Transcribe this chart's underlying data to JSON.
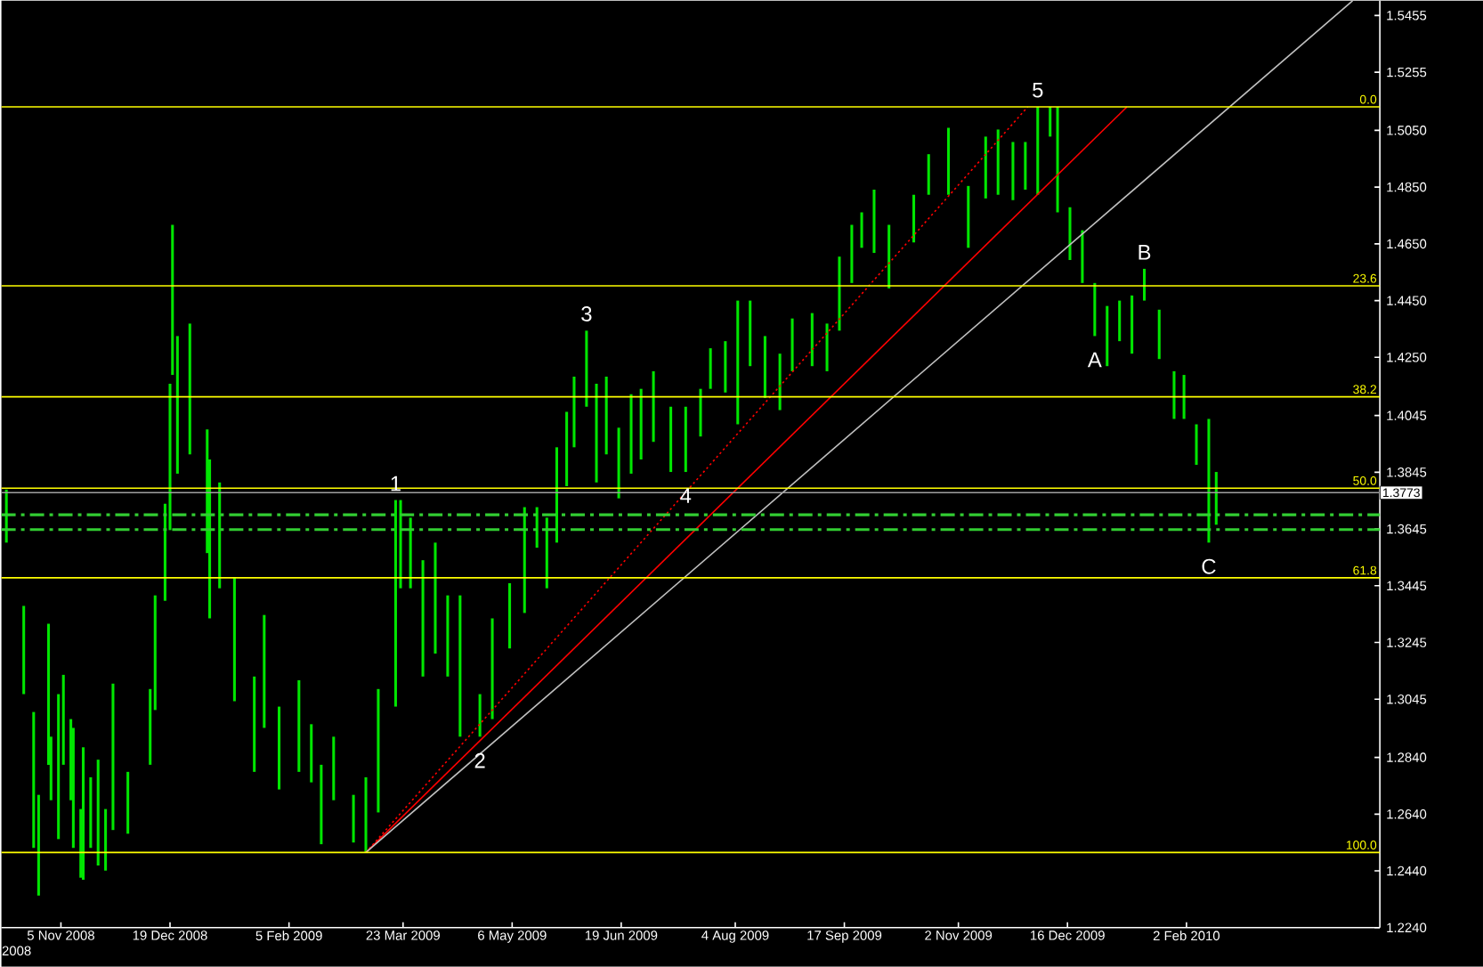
{
  "chart_data": {
    "type": "bar",
    "xlim": [
      "2008-10-12",
      "2010-04-21"
    ],
    "xticks": [
      {
        "value": "2008-11-05",
        "label": "5 Nov 2008"
      },
      {
        "value": "2008-12-19",
        "label": "19 Dec 2008"
      },
      {
        "value": "2009-02-05",
        "label": "5 Feb 2009"
      },
      {
        "value": "2009-03-23",
        "label": "23 Mar 2009"
      },
      {
        "value": "2009-05-06",
        "label": "6 May 2009"
      },
      {
        "value": "2009-06-19",
        "label": "19 Jun 2009"
      },
      {
        "value": "2009-08-04",
        "label": "4 Aug 2009"
      },
      {
        "value": "2009-09-17",
        "label": "17 Sep 2009"
      },
      {
        "value": "2009-11-02",
        "label": "2 Nov 2009"
      },
      {
        "value": "2009-12-16",
        "label": "16 Dec 2009"
      },
      {
        "value": "2010-02-02",
        "label": "2 Feb 2010"
      }
    ],
    "ylim": [
      1.224,
      1.5507
    ],
    "yticks": [
      1.5455,
      1.5255,
      {
        "value": 1.505,
        "label": "1.5050"
      },
      {
        "value": 1.485,
        "label": "1.4850"
      },
      {
        "value": 1.465,
        "label": "1.4650"
      },
      {
        "value": 1.445,
        "label": "1.4450"
      },
      {
        "value": 1.425,
        "label": "1.4250"
      },
      1.4045,
      1.3845,
      1.3645,
      1.3445,
      1.3245,
      1.3045,
      {
        "value": 1.284,
        "label": "1.2840"
      },
      {
        "value": 1.264,
        "label": "1.2640"
      },
      {
        "value": 1.244,
        "label": "1.2440"
      },
      {
        "value": 1.224,
        "label": "1.2240"
      }
    ],
    "series": [
      {
        "color": "#00e600",
        "x": [
          "2008-10-14",
          "2008-10-21",
          "2008-10-25",
          "2008-10-27",
          "2008-10-31",
          "2008-11-01",
          "2008-11-04",
          "2008-11-06",
          "2008-11-09",
          "2008-11-10",
          "2008-11-13",
          "2008-11-14",
          "2008-11-17",
          "2008-11-20",
          "2008-11-23",
          "2008-11-26",
          "2008-12-02",
          "2008-12-11",
          "2008-12-13",
          "2008-12-17",
          "2008-12-19",
          "2008-12-20",
          "2008-12-22",
          "2008-12-27",
          "2009-01-03",
          "2009-01-04",
          "2009-01-08",
          "2009-01-14",
          "2009-01-22",
          "2009-01-26",
          "2009-02-01",
          "2009-02-09",
          "2009-02-14",
          "2009-02-18",
          "2009-02-23",
          "2009-03-03",
          "2009-03-08",
          "2009-03-13",
          "2009-03-20",
          "2009-03-22",
          "2009-03-26",
          "2009-03-31",
          "2009-04-05",
          "2009-04-10",
          "2009-04-15",
          "2009-04-23",
          "2009-04-28",
          "2009-05-05",
          "2009-05-11",
          "2009-05-16",
          "2009-05-20",
          "2009-05-24",
          "2009-05-28",
          "2009-05-31",
          "2009-06-05",
          "2009-06-09",
          "2009-06-13",
          "2009-06-18",
          "2009-06-23",
          "2009-06-27",
          "2009-07-02",
          "2009-07-09",
          "2009-07-15",
          "2009-07-21",
          "2009-07-25",
          "2009-07-31",
          "2009-08-05",
          "2009-08-10",
          "2009-08-16",
          "2009-08-22",
          "2009-08-27",
          "2009-09-04",
          "2009-09-10",
          "2009-09-15",
          "2009-09-20",
          "2009-09-24",
          "2009-09-29",
          "2009-10-05",
          "2009-10-15",
          "2009-10-21",
          "2009-10-29",
          "2009-11-06",
          "2009-11-13",
          "2009-11-18",
          "2009-11-24",
          "2009-11-29",
          "2009-12-04",
          "2009-12-09",
          "2009-12-12",
          "2009-12-17",
          "2009-12-22",
          "2009-12-27",
          "2010-01-01",
          "2010-01-06",
          "2010-01-11",
          "2010-01-16",
          "2010-01-22",
          "2010-01-28",
          "2010-02-01",
          "2010-02-06",
          "2010-02-11",
          "2010-02-14"
        ],
        "base": [
          1.3597,
          1.3063,
          1.2521,
          1.2353,
          1.2814,
          1.2689,
          1.2552,
          1.2814,
          1.2689,
          1.2521,
          1.2416,
          1.2409,
          1.2521,
          1.2459,
          1.2441,
          1.2584,
          1.2571,
          1.2814,
          1.3007,
          1.3392,
          1.3641,
          1.4188,
          1.384,
          1.3908,
          1.356,
          1.333,
          1.3436,
          1.3038,
          1.2789,
          1.2944,
          1.2727,
          1.2789,
          1.2752,
          1.2534,
          1.2689,
          1.254,
          1.2505,
          1.2646,
          1.3019,
          1.3436,
          1.3436,
          1.3125,
          1.3206,
          1.3125,
          1.2913,
          1.2913,
          1.2975,
          1.3224,
          1.3349,
          1.3579,
          1.3436,
          1.3597,
          1.3796,
          1.3933,
          1.4076,
          1.3809,
          1.3908,
          1.3753,
          1.384,
          1.389,
          1.3952,
          1.3846,
          1.3846,
          1.3971,
          1.4139,
          1.4126,
          1.4014,
          1.4219,
          1.4107,
          1.4064,
          1.4201,
          1.4219,
          1.4201,
          1.4344,
          1.4512,
          1.4636,
          1.4618,
          1.4493,
          1.4655,
          1.4823,
          1.4823,
          1.4636,
          1.481,
          1.4823,
          1.4804,
          1.4841,
          1.4823,
          1.5028,
          1.4761,
          1.4593,
          1.4512,
          1.4325,
          1.4219,
          1.4307,
          1.4263,
          1.445,
          1.4244,
          1.4033,
          1.4033,
          1.3871,
          1.3597,
          1.366
        ],
        "values": [
          0.0187,
          0.0311,
          0.0479,
          0.0355,
          0.0497,
          0.0224,
          0.0511,
          0.0317,
          0.0286,
          0.0423,
          0.0242,
          0.0467,
          0.0249,
          0.0373,
          0.0217,
          0.0516,
          0.0218,
          0.0267,
          0.0404,
          0.0342,
          0.0516,
          0.0529,
          0.0485,
          0.0461,
          0.0436,
          0.056,
          0.0373,
          0.0435,
          0.0336,
          0.0398,
          0.0292,
          0.0323,
          0.0205,
          0.028,
          0.0224,
          0.0168,
          0.0265,
          0.0435,
          0.0728,
          0.0311,
          0.0249,
          0.041,
          0.0391,
          0.0286,
          0.0498,
          0.015,
          0.0355,
          0.023,
          0.0373,
          0.0143,
          0.0249,
          0.0336,
          0.0262,
          0.0249,
          0.0268,
          0.0348,
          0.0274,
          0.0249,
          0.028,
          0.0249,
          0.0249,
          0.023,
          0.023,
          0.0168,
          0.0143,
          0.0181,
          0.0436,
          0.0231,
          0.0218,
          0.0199,
          0.0186,
          0.0187,
          0.0168,
          0.0261,
          0.0205,
          0.0125,
          0.0223,
          0.0224,
          0.0168,
          0.0143,
          0.0236,
          0.0218,
          0.0218,
          0.023,
          0.0205,
          0.0168,
          0.031,
          0.0105,
          0.0372,
          0.0186,
          0.0186,
          0.0187,
          0.0212,
          0.0143,
          0.0205,
          0.0112,
          0.0174,
          0.0168,
          0.0155,
          0.0143,
          0.0436,
          0.0186
        ]
      },
      {
        "type": "line",
        "color": "#ff0000",
        "line_style": "solid",
        "x": [
          "2009-03-08",
          "2010-01-09"
        ],
        "values": [
          1.2505,
          1.5133
        ]
      },
      {
        "type": "line",
        "color": "#ff0000",
        "line_style": "dotted",
        "x": [
          "2009-03-08",
          "2009-11-30"
        ],
        "values": [
          1.2505,
          1.5133
        ]
      },
      {
        "type": "line",
        "color": "#c0c0c0",
        "line_style": "solid",
        "x": [
          "2009-03-08",
          "2010-04-10"
        ],
        "values": [
          1.2505,
          1.5507
        ]
      }
    ],
    "ref_lines": [
      {
        "axis": "y",
        "value": 1.5133,
        "color": "#ffff00"
      },
      {
        "axis": "y",
        "value": 1.4502,
        "color": "#ffff00"
      },
      {
        "axis": "y",
        "value": 1.4111,
        "color": "#ffff00"
      },
      {
        "axis": "y",
        "value": 1.3789,
        "color": "#ffff00"
      },
      {
        "axis": "y",
        "value": 1.3473,
        "color": "#ffff00"
      },
      {
        "axis": "y",
        "value": 1.2505,
        "color": "#ffff00"
      },
      {
        "axis": "y",
        "value": 1.3773,
        "label": "1.3773",
        "color": "#a0a0a0"
      },
      {
        "axis": "y",
        "value": 1.3695,
        "color": "#32cd32",
        "line_style": "dashed"
      },
      {
        "axis": "y",
        "value": 1.3643,
        "color": "#32cd32",
        "line_style": "dashed"
      }
    ],
    "annotations": [
      {
        "text": "1",
        "x": "2009-03-20",
        "y": 1.3747
      },
      {
        "text": "2",
        "x": "2009-04-23",
        "y": 1.2913
      },
      {
        "text": "3",
        "x": "2009-06-05",
        "y": 1.4344
      },
      {
        "text": "4",
        "x": "2009-07-15",
        "y": 1.3846
      },
      {
        "text": "5",
        "x": "2009-12-04",
        "y": 1.5133
      },
      {
        "text": "A",
        "x": "2009-12-27",
        "y": 1.4325
      },
      {
        "text": "B",
        "x": "2010-01-16",
        "y": 1.4562
      },
      {
        "text": "C",
        "x": "2010-02-11",
        "y": 1.3597
      },
      {
        "text": "0.0",
        "x": "2010-04-21",
        "y": 1.5133
      },
      {
        "text": "23.6",
        "x": "2010-04-21",
        "y": 1.4502
      },
      {
        "text": "38.2",
        "x": "2010-04-21",
        "y": 1.4111
      },
      {
        "text": "50.0",
        "x": "2010-04-21",
        "y": 1.3789
      },
      {
        "text": "61.8",
        "x": "2010-04-21",
        "y": 1.3473
      },
      {
        "text": "100.0",
        "x": "2010-04-21",
        "y": 1.2505
      },
      "2008"
    ]
  }
}
